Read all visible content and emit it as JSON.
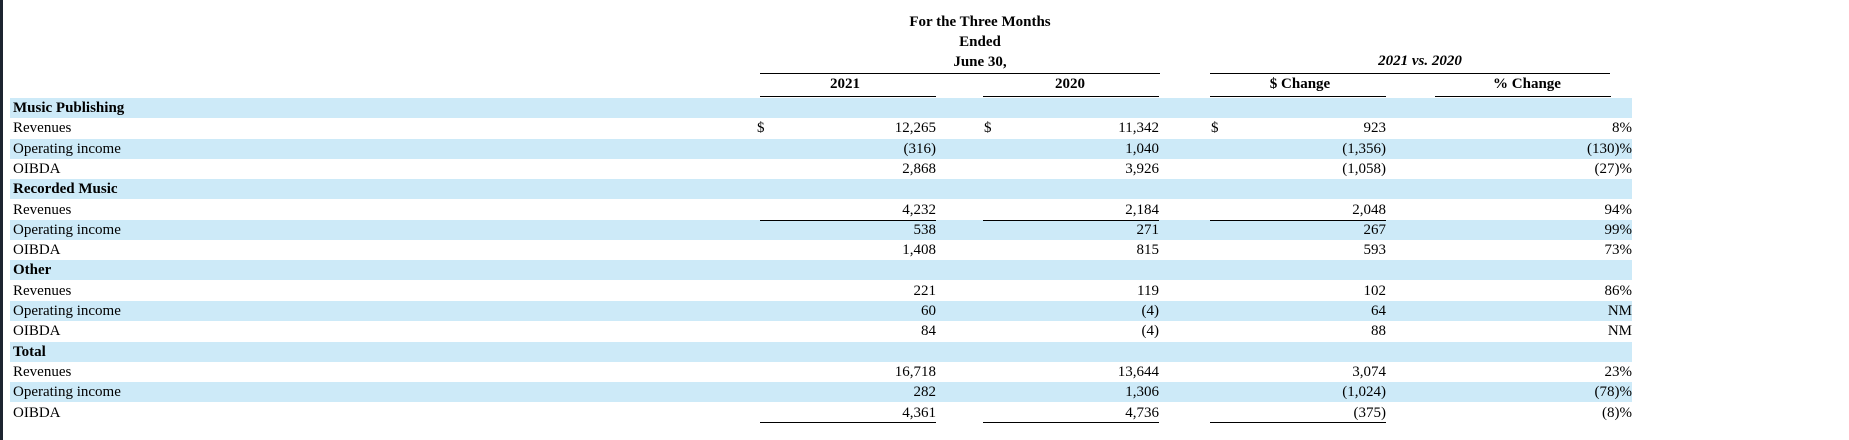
{
  "header": {
    "period_lines": [
      "For the Three Months",
      "Ended",
      "June 30,"
    ],
    "comparison_title": "2021 vs. 2020",
    "columns": [
      "2021",
      "2020",
      "$ Change",
      "% Change"
    ]
  },
  "currency_symbol": "$",
  "rows": [
    {
      "label": "Music Publishing",
      "section": true,
      "shade": true
    },
    {
      "label": "Revenues",
      "shade": false,
      "dollar": true,
      "v2021": "12,265",
      "v2020": "11,342",
      "change": "923",
      "pct": "8%"
    },
    {
      "label": "Operating income",
      "shade": true,
      "v2021": "(316)",
      "v2020": "1,040",
      "change": "(1,356)",
      "pct": "(130)%"
    },
    {
      "label": "OIBDA",
      "shade": false,
      "v2021": "2,868",
      "v2020": "3,926",
      "change": "(1,058)",
      "pct": "(27)%"
    },
    {
      "label": "Recorded Music",
      "section": true,
      "shade": true
    },
    {
      "label": "Revenues",
      "shade": false,
      "v2021": "4,232",
      "v2020": "2,184",
      "change": "2,048",
      "pct": "94%"
    },
    {
      "label": "Operating income",
      "shade": true,
      "v2021": "538",
      "v2020": "271",
      "change": "267",
      "pct": "99%"
    },
    {
      "label": "OIBDA",
      "shade": false,
      "v2021": "1,408",
      "v2020": "815",
      "change": "593",
      "pct": "73%"
    },
    {
      "label": "Other",
      "section": true,
      "shade": true
    },
    {
      "label": "Revenues",
      "shade": false,
      "v2021": "221",
      "v2020": "119",
      "change": "102",
      "pct": "86%"
    },
    {
      "label": "Operating income",
      "shade": true,
      "v2021": "60",
      "v2020": "(4)",
      "change": "64",
      "pct": "NM"
    },
    {
      "label": "OIBDA",
      "shade": false,
      "v2021": "84",
      "v2020": "(4)",
      "change": "88",
      "pct": "NM"
    },
    {
      "label": "Total",
      "section": true,
      "shade": true
    },
    {
      "label": "Revenues",
      "shade": false,
      "v2021": "16,718",
      "v2020": "13,644",
      "change": "3,074",
      "pct": "23%"
    },
    {
      "label": "Operating income",
      "shade": true,
      "v2021": "282",
      "v2020": "1,306",
      "change": "(1,024)",
      "pct": "(78)%"
    },
    {
      "label": "OIBDA",
      "shade": false,
      "v2021": "4,361",
      "v2020": "4,736",
      "change": "(375)",
      "pct": "(8)%"
    }
  ]
}
